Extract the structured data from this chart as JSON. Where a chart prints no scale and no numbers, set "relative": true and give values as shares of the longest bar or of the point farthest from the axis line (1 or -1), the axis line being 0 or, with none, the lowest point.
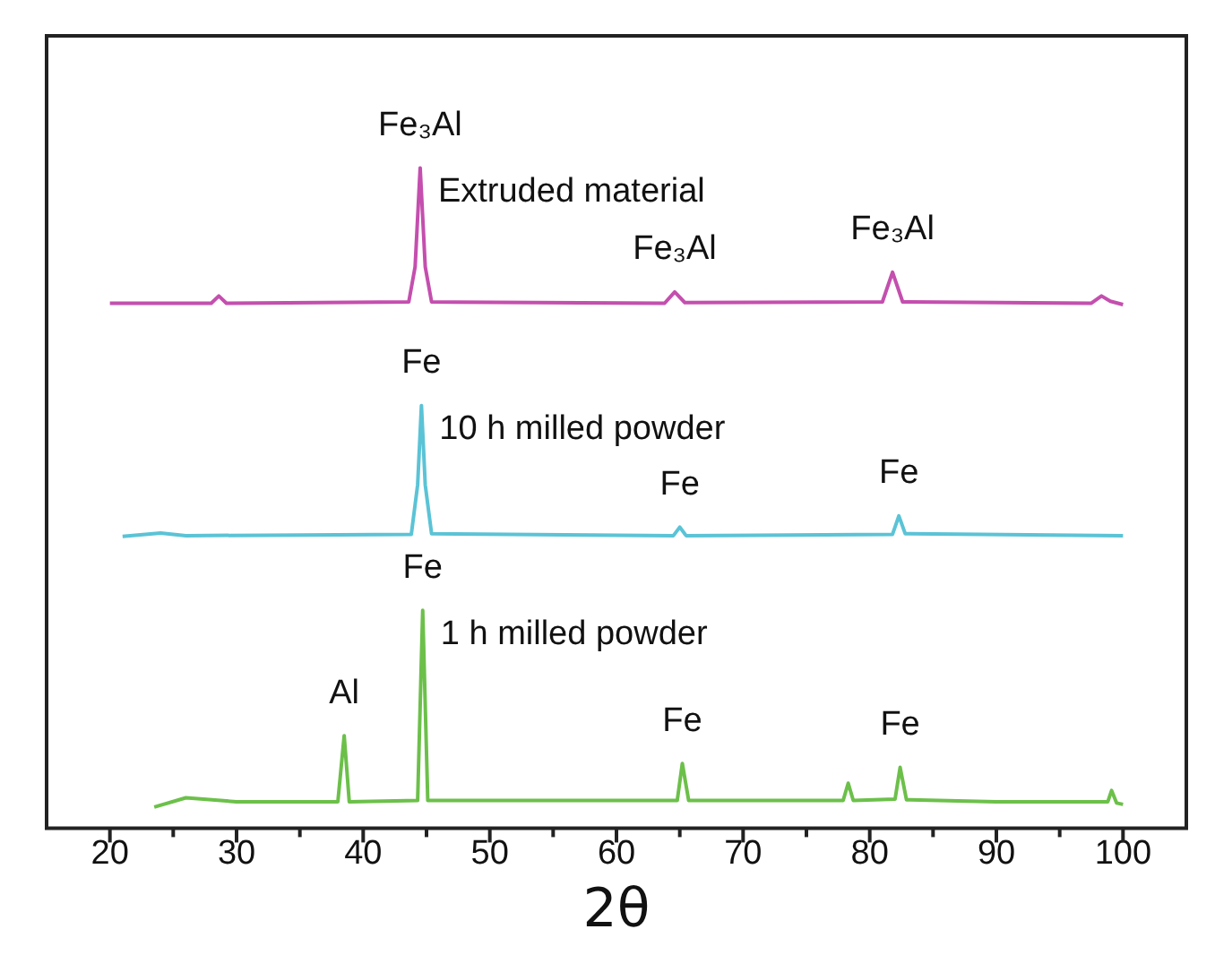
{
  "chart_data": {
    "type": "line",
    "relative": true,
    "xlabel": "2θ",
    "xlim": [
      15,
      105
    ],
    "xticks": [
      20,
      {
        "value": 25,
        "label": null
      },
      30,
      {
        "value": 35,
        "label": null
      },
      40,
      {
        "value": 45,
        "label": null
      },
      50,
      {
        "value": 55,
        "label": null
      },
      60,
      {
        "value": 65,
        "label": null
      },
      70,
      {
        "value": 75,
        "label": null
      },
      80,
      {
        "value": 85,
        "label": null
      },
      90,
      {
        "value": 95,
        "label": null
      },
      100
    ],
    "grid": false,
    "legend": false,
    "marker": "none",
    "line_style": "solid",
    "series": [
      {
        "name": "Extruded material",
        "color": "#c44fae",
        "x": [
          20,
          28,
          28.6,
          29.2,
          43.6,
          44.1,
          44.5,
          44.9,
          45.4,
          63.8,
          64.6,
          65.4,
          81,
          81.8,
          82.6,
          97.5,
          98.3,
          99,
          100
        ],
        "values": [
          0.795,
          0.795,
          0.806,
          0.795,
          0.797,
          0.85,
          1.0,
          0.85,
          0.797,
          0.795,
          0.812,
          0.796,
          0.797,
          0.842,
          0.797,
          0.795,
          0.806,
          0.798,
          0.793
        ]
      },
      {
        "name": "10 h milled powder",
        "color": "#5bc3d6",
        "x": [
          21,
          24,
          26,
          43.8,
          44.3,
          44.6,
          44.9,
          45.4,
          64.5,
          65,
          65.5,
          81.8,
          82.3,
          82.8,
          100
        ],
        "values": [
          0.442,
          0.447,
          0.443,
          0.445,
          0.52,
          0.64,
          0.52,
          0.446,
          0.443,
          0.456,
          0.443,
          0.445,
          0.473,
          0.446,
          0.443
        ]
      },
      {
        "name": "1 h milled powder",
        "color": "#6cc04a",
        "x": [
          23.5,
          26,
          30,
          38,
          38.5,
          38.9,
          44.3,
          44.7,
          45.1,
          64.8,
          65.2,
          65.7,
          77.9,
          78.3,
          78.7,
          82,
          82.4,
          82.9,
          90,
          98.8,
          99.1,
          99.5,
          100
        ],
        "values": [
          0.032,
          0.046,
          0.04,
          0.04,
          0.14,
          0.04,
          0.042,
          0.33,
          0.042,
          0.042,
          0.098,
          0.042,
          0.042,
          0.068,
          0.042,
          0.044,
          0.092,
          0.043,
          0.04,
          0.04,
          0.057,
          0.038,
          0.036
        ]
      }
    ],
    "annotations": [
      {
        "text": "Fe₃Al",
        "x": 44.5,
        "y": 1.0
      },
      {
        "text": "Fe₃Al",
        "x": 64.6,
        "y": 0.812
      },
      {
        "text": "Fe₃Al",
        "x": 81.8,
        "y": 0.842
      },
      {
        "text": "Fe",
        "x": 44.6,
        "y": 0.64
      },
      {
        "text": "Fe",
        "x": 65,
        "y": 0.456
      },
      {
        "text": "Fe",
        "x": 82.3,
        "y": 0.473
      },
      {
        "text": "Fe",
        "x": 44.7,
        "y": 0.33
      },
      {
        "text": "Al",
        "x": 38.5,
        "y": 0.14
      },
      {
        "text": "Fe",
        "x": 65.2,
        "y": 0.098
      },
      {
        "text": "Fe",
        "x": 82.4,
        "y": 0.092
      }
    ]
  }
}
